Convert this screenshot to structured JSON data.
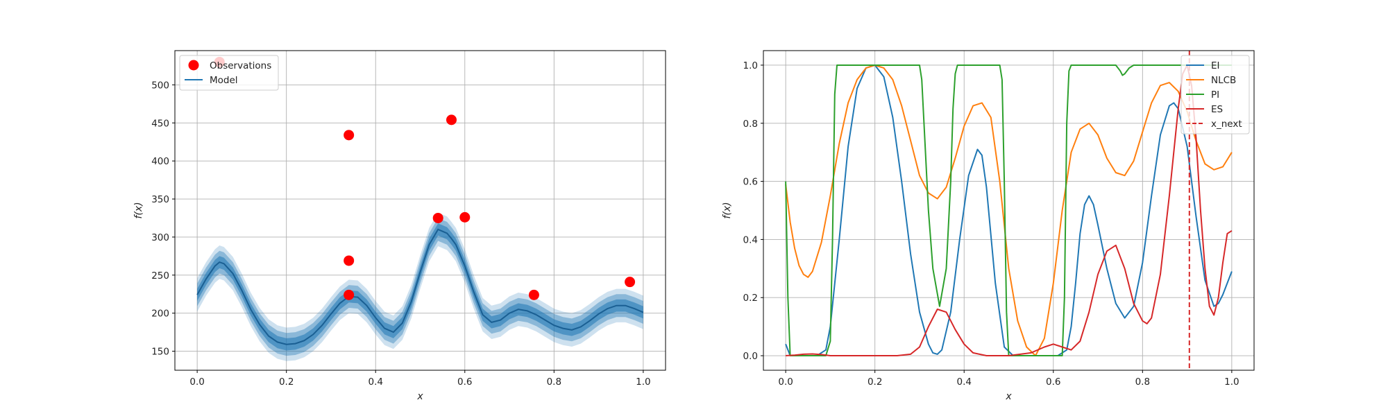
{
  "chart_data": [
    {
      "type": "line",
      "xlabel": "x",
      "ylabel": "f(x)",
      "xlim": [
        -0.05,
        1.05
      ],
      "ylim": [
        125,
        545
      ],
      "xticks": [
        "0.0",
        "0.2",
        "0.4",
        "0.6",
        "0.8",
        "1.0"
      ],
      "yticks": [
        "150",
        "200",
        "250",
        "300",
        "350",
        "400",
        "450",
        "500"
      ],
      "grid": true,
      "legend_position": "top-left",
      "legend": [
        {
          "label": "Observations",
          "marker": "circle",
          "color": "#ff0000"
        },
        {
          "label": "Model",
          "marker": "line",
          "color": "#1f77b4"
        }
      ],
      "observations": [
        {
          "x": 0.05,
          "y": 530
        },
        {
          "x": 0.34,
          "y": 434
        },
        {
          "x": 0.34,
          "y": 269
        },
        {
          "x": 0.34,
          "y": 224
        },
        {
          "x": 0.54,
          "y": 325
        },
        {
          "x": 0.57,
          "y": 454
        },
        {
          "x": 0.6,
          "y": 326
        },
        {
          "x": 0.755,
          "y": 224
        },
        {
          "x": 0.97,
          "y": 241
        }
      ],
      "model": {
        "x": [
          0.0,
          0.02,
          0.04,
          0.05,
          0.06,
          0.08,
          0.1,
          0.12,
          0.14,
          0.16,
          0.18,
          0.2,
          0.22,
          0.24,
          0.26,
          0.28,
          0.3,
          0.32,
          0.34,
          0.36,
          0.38,
          0.4,
          0.42,
          0.44,
          0.46,
          0.48,
          0.5,
          0.52,
          0.54,
          0.56,
          0.57,
          0.58,
          0.6,
          0.62,
          0.64,
          0.66,
          0.68,
          0.7,
          0.72,
          0.74,
          0.76,
          0.78,
          0.8,
          0.82,
          0.84,
          0.86,
          0.88,
          0.9,
          0.92,
          0.94,
          0.96,
          0.98,
          1.0
        ],
        "mean": [
          224,
          245,
          262,
          267,
          265,
          252,
          230,
          205,
          185,
          170,
          162,
          159,
          160,
          164,
          172,
          184,
          199,
          213,
          222,
          221,
          210,
          194,
          180,
          175,
          187,
          215,
          254,
          290,
          310,
          305,
          298,
          290,
          262,
          228,
          198,
          188,
          191,
          200,
          205,
          203,
          198,
          191,
          184,
          180,
          178,
          182,
          190,
          199,
          206,
          210,
          210,
          206,
          201
        ],
        "band_widths": [
          8,
          15,
          22
        ],
        "color": "#1f77b4"
      }
    },
    {
      "type": "line",
      "xlabel": "x",
      "ylabel": "f(x)",
      "xlim": [
        -0.05,
        1.05
      ],
      "ylim": [
        -0.05,
        1.05
      ],
      "xticks": [
        "0.0",
        "0.2",
        "0.4",
        "0.6",
        "0.8",
        "1.0"
      ],
      "yticks": [
        "0.0",
        "0.2",
        "0.4",
        "0.6",
        "0.8",
        "1.0"
      ],
      "grid": true,
      "legend_position": "top-right",
      "series": [
        {
          "name": "EI",
          "color": "#1f77b4",
          "x": [
            0.0,
            0.01,
            0.03,
            0.05,
            0.07,
            0.09,
            0.1,
            0.12,
            0.14,
            0.16,
            0.18,
            0.2,
            0.22,
            0.24,
            0.26,
            0.28,
            0.3,
            0.32,
            0.33,
            0.34,
            0.35,
            0.37,
            0.39,
            0.41,
            0.43,
            0.44,
            0.45,
            0.47,
            0.49,
            0.51,
            0.53,
            0.55,
            0.57,
            0.59,
            0.61,
            0.63,
            0.64,
            0.65,
            0.66,
            0.67,
            0.68,
            0.69,
            0.7,
            0.72,
            0.74,
            0.76,
            0.78,
            0.8,
            0.82,
            0.84,
            0.86,
            0.87,
            0.88,
            0.9,
            0.92,
            0.94,
            0.96,
            0.97,
            0.98,
            1.0
          ],
          "y": [
            0.04,
            0.0,
            0.0,
            0.0,
            0.0,
            0.02,
            0.1,
            0.4,
            0.72,
            0.92,
            0.99,
            1.0,
            0.96,
            0.82,
            0.6,
            0.35,
            0.15,
            0.04,
            0.01,
            0.005,
            0.02,
            0.15,
            0.4,
            0.62,
            0.71,
            0.69,
            0.58,
            0.25,
            0.03,
            0.0,
            0.0,
            0.0,
            0.0,
            0.0,
            0.0,
            0.02,
            0.1,
            0.25,
            0.42,
            0.52,
            0.55,
            0.52,
            0.45,
            0.3,
            0.18,
            0.13,
            0.17,
            0.32,
            0.55,
            0.76,
            0.86,
            0.87,
            0.85,
            0.72,
            0.48,
            0.26,
            0.17,
            0.18,
            0.21,
            0.29
          ]
        },
        {
          "name": "NLCB",
          "color": "#ff7f0e",
          "x": [
            0.0,
            0.01,
            0.02,
            0.03,
            0.04,
            0.05,
            0.06,
            0.08,
            0.1,
            0.12,
            0.14,
            0.16,
            0.18,
            0.2,
            0.22,
            0.24,
            0.26,
            0.28,
            0.3,
            0.32,
            0.34,
            0.36,
            0.38,
            0.4,
            0.42,
            0.44,
            0.46,
            0.48,
            0.5,
            0.52,
            0.54,
            0.56,
            0.58,
            0.6,
            0.62,
            0.64,
            0.66,
            0.68,
            0.7,
            0.72,
            0.74,
            0.76,
            0.78,
            0.8,
            0.82,
            0.84,
            0.86,
            0.88,
            0.9,
            0.92,
            0.94,
            0.96,
            0.98,
            1.0
          ],
          "y": [
            0.59,
            0.46,
            0.37,
            0.31,
            0.28,
            0.27,
            0.29,
            0.39,
            0.55,
            0.73,
            0.87,
            0.95,
            0.99,
            1.0,
            0.99,
            0.95,
            0.86,
            0.74,
            0.62,
            0.56,
            0.54,
            0.58,
            0.68,
            0.79,
            0.86,
            0.87,
            0.82,
            0.6,
            0.3,
            0.12,
            0.03,
            0.0,
            0.06,
            0.25,
            0.5,
            0.7,
            0.78,
            0.8,
            0.76,
            0.68,
            0.63,
            0.62,
            0.67,
            0.77,
            0.87,
            0.93,
            0.94,
            0.91,
            0.84,
            0.74,
            0.66,
            0.64,
            0.65,
            0.7
          ]
        },
        {
          "name": "PI",
          "color": "#2ca02c",
          "x": [
            0.0,
            0.005,
            0.01,
            0.09,
            0.1,
            0.105,
            0.11,
            0.115,
            0.3,
            0.305,
            0.31,
            0.32,
            0.33,
            0.345,
            0.36,
            0.37,
            0.375,
            0.38,
            0.385,
            0.39,
            0.48,
            0.485,
            0.49,
            0.495,
            0.5,
            0.62,
            0.625,
            0.63,
            0.635,
            0.64,
            0.74,
            0.75,
            0.755,
            0.76,
            0.77,
            0.78,
            0.83,
            1.0
          ],
          "y": [
            0.6,
            0.2,
            0.0,
            0.0,
            0.05,
            0.4,
            0.9,
            1.0,
            1.0,
            0.95,
            0.8,
            0.5,
            0.3,
            0.17,
            0.3,
            0.6,
            0.85,
            0.97,
            1.0,
            1.0,
            1.0,
            0.95,
            0.6,
            0.15,
            0.0,
            0.0,
            0.2,
            0.8,
            0.98,
            1.0,
            1.0,
            0.98,
            0.965,
            0.97,
            0.99,
            1.0,
            1.0,
            1.0
          ]
        },
        {
          "name": "ES",
          "color": "#d62728",
          "x": [
            0.0,
            0.02,
            0.04,
            0.06,
            0.08,
            0.1,
            0.15,
            0.2,
            0.25,
            0.28,
            0.3,
            0.32,
            0.34,
            0.36,
            0.38,
            0.4,
            0.42,
            0.45,
            0.5,
            0.55,
            0.58,
            0.6,
            0.62,
            0.64,
            0.66,
            0.68,
            0.7,
            0.72,
            0.74,
            0.76,
            0.78,
            0.8,
            0.81,
            0.82,
            0.84,
            0.86,
            0.88,
            0.89,
            0.9,
            0.91,
            0.92,
            0.93,
            0.94,
            0.95,
            0.96,
            0.97,
            0.98,
            0.99,
            1.0
          ],
          "y": [
            0.0,
            0.002,
            0.005,
            0.006,
            0.004,
            0.0,
            0.0,
            0.0,
            0.0,
            0.005,
            0.03,
            0.1,
            0.16,
            0.15,
            0.09,
            0.04,
            0.01,
            0.0,
            0.0,
            0.01,
            0.03,
            0.04,
            0.03,
            0.02,
            0.05,
            0.15,
            0.28,
            0.36,
            0.38,
            0.3,
            0.18,
            0.12,
            0.11,
            0.13,
            0.28,
            0.55,
            0.85,
            0.97,
            1.0,
            0.93,
            0.75,
            0.5,
            0.3,
            0.17,
            0.14,
            0.2,
            0.32,
            0.42,
            0.43
          ]
        }
      ],
      "vline": {
        "name": "x_next",
        "x": 0.905,
        "color": "#d62728"
      },
      "legend": [
        {
          "label": "EI",
          "style": "solid",
          "color": "#1f77b4"
        },
        {
          "label": "NLCB",
          "style": "solid",
          "color": "#ff7f0e"
        },
        {
          "label": "PI",
          "style": "solid",
          "color": "#2ca02c"
        },
        {
          "label": "ES",
          "style": "solid",
          "color": "#d62728"
        },
        {
          "label": "x_next",
          "style": "dashed",
          "color": "#d62728"
        }
      ]
    }
  ]
}
